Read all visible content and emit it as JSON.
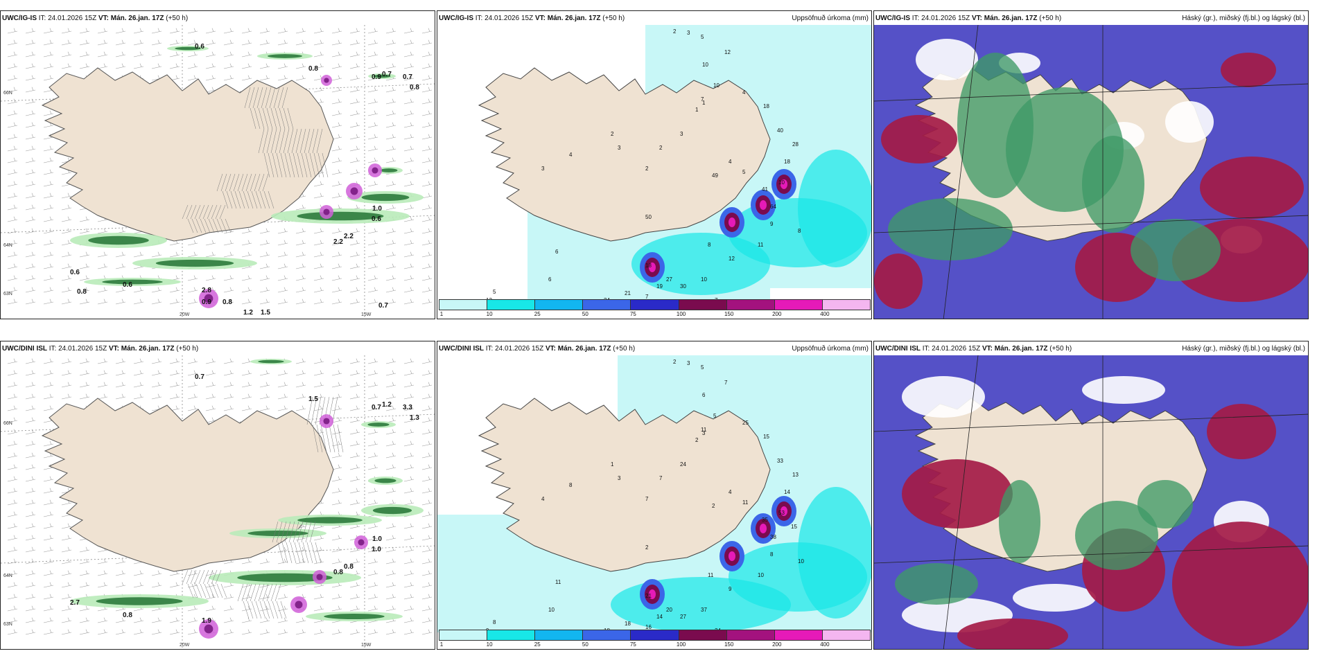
{
  "header": {
    "it_label": "IT:",
    "it_value": "24.01.2026 15Z",
    "vt_label": "VT:",
    "vt_value": "Mán. 26.jan. 17Z",
    "lead": "(+50 h)"
  },
  "rows": [
    {
      "model": "UWC/IG-IS"
    },
    {
      "model": "UWC/DINI ISL"
    }
  ],
  "panel_titles": {
    "precip": "Uppsöfnuð úrkoma (mm)",
    "clouds": "Háský (gr.), miðský (fj.bl.) og lágský (bl.)"
  },
  "axis_labels": {
    "lat66": "66N",
    "lat64": "64N",
    "lat63": "63N",
    "lon20": "20W",
    "lon15": "15W",
    "lat66r": "66N",
    "lat64r": "64N"
  },
  "colorbar": {
    "ticks": [
      "1",
      "10",
      "25",
      "50",
      "75",
      "100",
      "150",
      "200",
      "400"
    ],
    "colors": [
      "#c8f7f7",
      "#18e7e7",
      "#12b6f0",
      "#3b66e8",
      "#2a2ac8",
      "#7a0b4e",
      "#a3127e",
      "#e61ab8",
      "#f4b6f0"
    ]
  },
  "colors": {
    "land": "#efe2d2",
    "sea_precip": "#c8f7f7",
    "high_cloud": "#a41b47",
    "mid_cloud": "#5551c7",
    "low_cloud": "#3f9a67",
    "green_light": "#b9ebb9",
    "green_dark": "#2c7a3c",
    "magenta": "#d05fd8"
  },
  "map_labels": {
    "top_wind": [
      "0.6",
      "0.8",
      "0.7",
      "0.9",
      "0.7",
      "0.8",
      "0.6",
      "0.6",
      "0.6",
      "1.0",
      "2.2",
      "2.2",
      "2.8",
      "0.9",
      "0.8",
      "0.7",
      "1.2",
      "1.5",
      "0.8"
    ],
    "top_precip": [
      "2",
      "3",
      "5",
      "12",
      "10",
      "10",
      "7",
      "4",
      "18",
      "40",
      "28",
      "18",
      "10",
      "64",
      "41",
      "9",
      "11",
      "12",
      "8",
      "27",
      "19",
      "34",
      "21",
      "18",
      "30",
      "10",
      "7",
      "3",
      "7",
      "6",
      "6",
      "5",
      "13",
      "1",
      "3",
      "3",
      "2",
      "4",
      "2",
      "2",
      "3",
      "1",
      "1",
      "50",
      "49",
      "4",
      "5",
      "8"
    ],
    "bot_wind": [
      "0.7",
      "1.5",
      "1.2",
      "0.7",
      "3.3",
      "1.3",
      "1.0",
      "2.7",
      "0.8",
      "1.0",
      "0.8",
      "0.8",
      "1.9"
    ],
    "bot_precip": [
      "2",
      "3",
      "5",
      "7",
      "6",
      "5",
      "11",
      "25",
      "15",
      "33",
      "13",
      "14",
      "53",
      "38",
      "35",
      "8",
      "10",
      "9",
      "11",
      "20",
      "14",
      "18",
      "18",
      "21",
      "27",
      "37",
      "34",
      "25",
      "16",
      "11",
      "10",
      "8",
      "9",
      "6",
      "4",
      "3",
      "1",
      "8",
      "7",
      "7",
      "24",
      "2",
      "3",
      "2",
      "2",
      "4",
      "11",
      "10",
      "15"
    ]
  }
}
